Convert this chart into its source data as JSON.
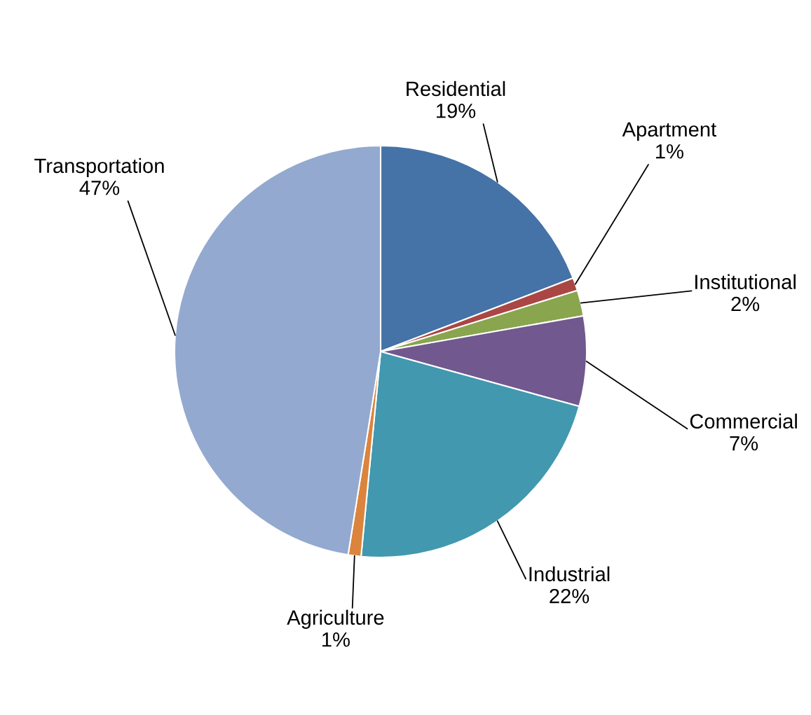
{
  "chart_data": {
    "type": "pie",
    "categories": [
      "Residential",
      "Apartment",
      "Institutional",
      "Commercial",
      "Industrial",
      "Agriculture",
      "Transportation"
    ],
    "values": [
      19,
      1,
      2,
      7,
      22,
      1,
      47
    ],
    "colors": [
      "#4572a7",
      "#aa4643",
      "#89a54e",
      "#71588f",
      "#4198af",
      "#db843d",
      "#93a9cf"
    ],
    "value_labels": [
      "19%",
      "1%",
      "2%",
      "7%",
      "22%",
      "1%",
      "47%"
    ]
  }
}
